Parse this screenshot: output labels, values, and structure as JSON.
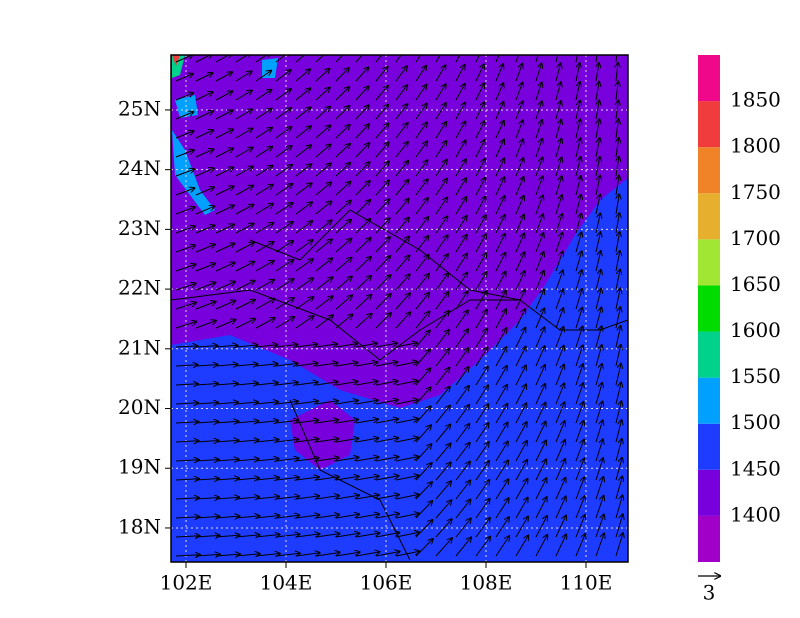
{
  "map": {
    "lon_range": [
      101.7,
      110.84
    ],
    "lat_range": [
      17.43,
      25.92
    ],
    "lon_ticks": [
      {
        "value": 102,
        "label": "102E"
      },
      {
        "value": 104,
        "label": "104E"
      },
      {
        "value": 106,
        "label": "106E"
      },
      {
        "value": 108,
        "label": "108E"
      },
      {
        "value": 110,
        "label": "110E"
      }
    ],
    "lat_ticks": [
      {
        "value": 18,
        "label": "18N"
      },
      {
        "value": 19,
        "label": "19N"
      },
      {
        "value": 20,
        "label": "20N"
      },
      {
        "value": 21,
        "label": "21N"
      },
      {
        "value": 22,
        "label": "22N"
      },
      {
        "value": 23,
        "label": "23N"
      },
      {
        "value": 24,
        "label": "24N"
      },
      {
        "value": 25,
        "label": "25N"
      }
    ],
    "colorbar": {
      "levels": [
        1400,
        1450,
        1500,
        1550,
        1600,
        1650,
        1700,
        1750,
        1800,
        1850
      ],
      "colors": [
        "#a000c8",
        "#7800dc",
        "#1e3cff",
        "#00a0ff",
        "#00d28c",
        "#00dc00",
        "#a0e632",
        "#e6af2d",
        "#f08228",
        "#f03c3c",
        "#f0088a"
      ]
    },
    "reference_vector": "3"
  }
}
